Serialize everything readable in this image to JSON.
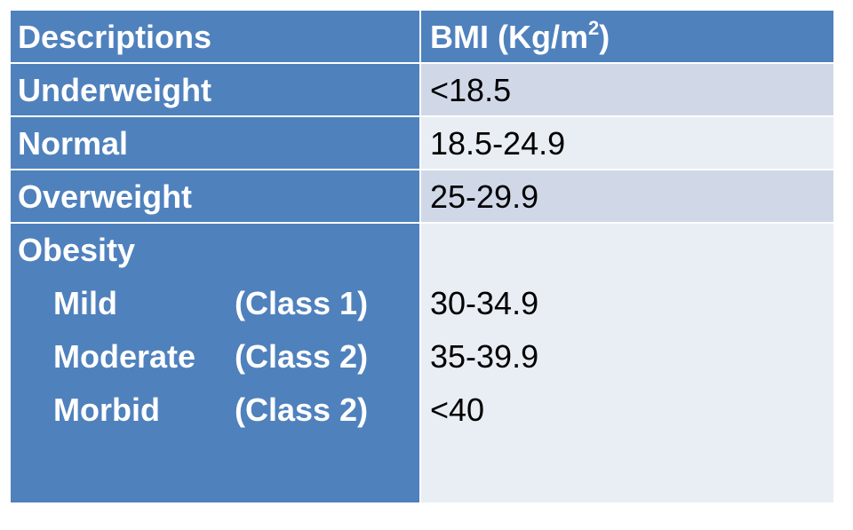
{
  "table": {
    "header": {
      "descriptions": "Descriptions",
      "bmi_prefix": "BMI (Kg/m",
      "bmi_superscript": "2",
      "bmi_suffix": ")"
    },
    "rows": [
      {
        "description": "Underweight",
        "bmi": "<18.5"
      },
      {
        "description": "Normal",
        "bmi": "18.5-24.9"
      },
      {
        "description": "Overweight",
        "bmi": "25-29.9"
      }
    ],
    "obesity": {
      "description": "Obesity",
      "classes": [
        {
          "name": "Mild",
          "class": "(Class 1)",
          "bmi": "30-34.9"
        },
        {
          "name": "Moderate",
          "class": "(Class 2)",
          "bmi": "35-39.9"
        },
        {
          "name": "Morbid",
          "class": "(Class 2)",
          "bmi": "<40"
        }
      ]
    }
  },
  "colors": {
    "header_bg": "#4f81bd",
    "left_col_bg": "#4f81bd",
    "row_shade_dark": "#d0d8e8",
    "row_shade_light": "#e9edf4"
  }
}
